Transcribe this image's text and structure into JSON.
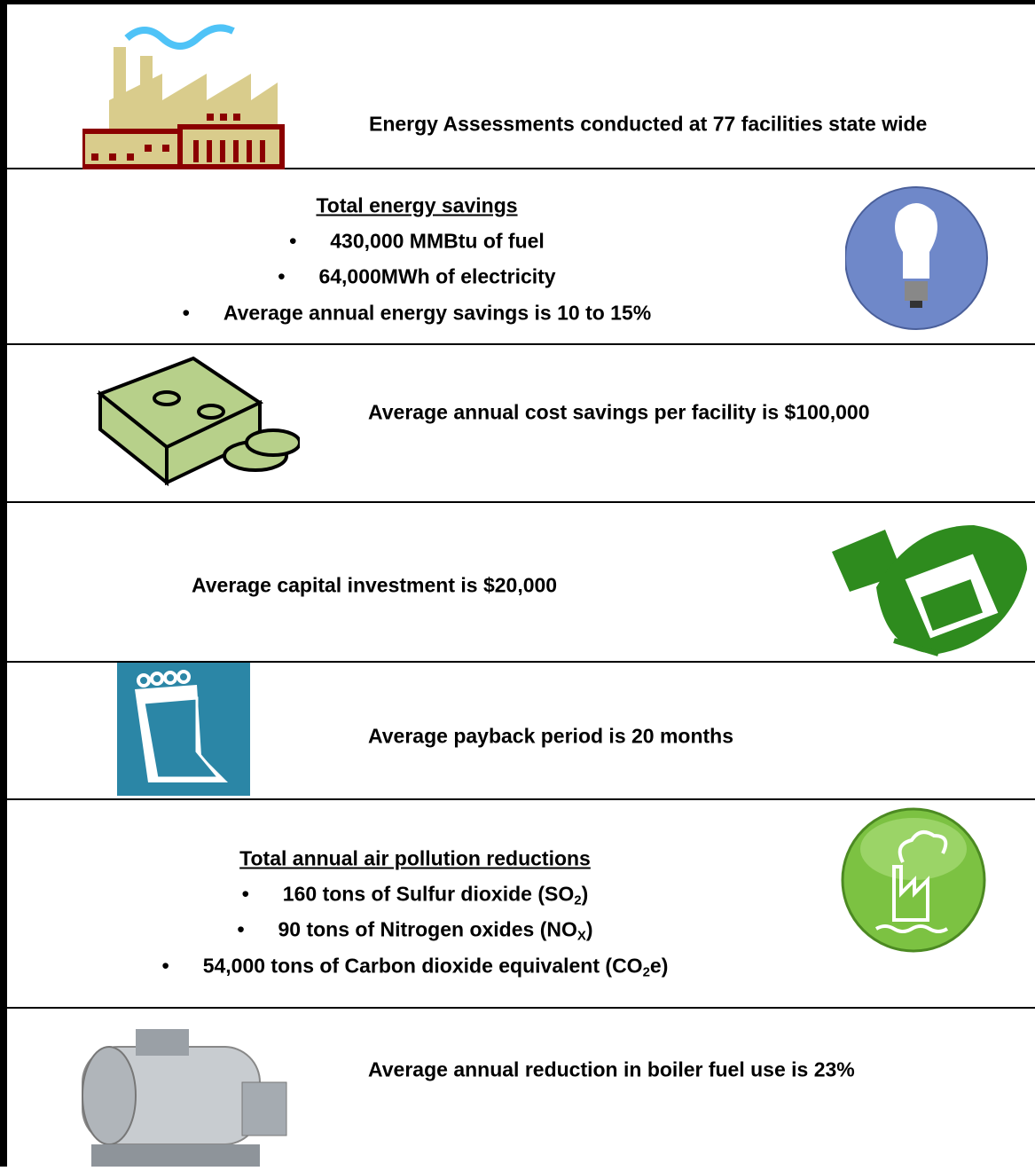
{
  "rows": [
    {
      "text": "Energy Assessments conducted at 77 facilities state wide"
    },
    {
      "heading": "Total energy savings",
      "bullets": [
        "430,000 MMBtu of fuel",
        "64,000MWh of electricity",
        "Average annual energy savings is 10 to 15%"
      ]
    },
    {
      "text": "Average annual cost savings per facility is $100,000"
    },
    {
      "text": "Average capital investment is $20,000"
    },
    {
      "text": "Average payback period is 20 months"
    },
    {
      "heading": "Total annual air pollution reductions",
      "bullets": [
        [
          "160 tons of Sulfur dioxide (SO",
          "2",
          ")"
        ],
        [
          "90 tons of Nitrogen oxides (NO",
          "X",
          ")"
        ],
        [
          "54,000 tons of Carbon dioxide equivalent (CO",
          "2",
          "e)"
        ]
      ]
    },
    {
      "text": "Average annual reduction in boiler fuel use is 23%"
    }
  ]
}
